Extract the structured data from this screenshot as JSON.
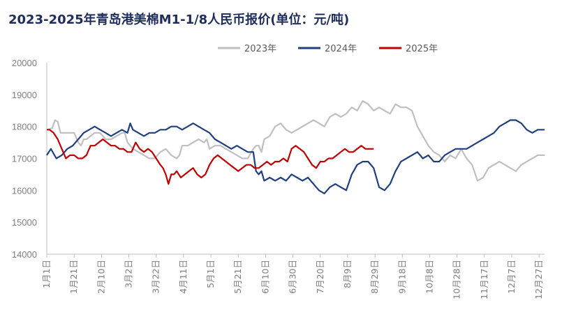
{
  "chart_data": {
    "type": "line",
    "title": "2023-2025年青岛港美棉M1-1/8人民币报价(单位：元/吨)",
    "ylim": [
      14000,
      20000
    ],
    "y_ticks": [
      20000,
      19000,
      18000,
      17000,
      16000,
      15000,
      14000
    ],
    "x_tick_labels": [
      "1月1日",
      "1月21日",
      "2月10日",
      "3月2日",
      "3月22日",
      "4月11日",
      "5月1日",
      "5月21日",
      "6月10日",
      "6月30日",
      "7月20日",
      "8月9日",
      "8月29日",
      "9月18日",
      "10月8日",
      "10月28日",
      "11月17日",
      "12月7日",
      "12月27日"
    ],
    "x_domain_days": [
      1,
      365
    ],
    "legend_position": "top-right",
    "series": [
      {
        "name": "2023年",
        "color": "#bfbfbf",
        "x": [
          1,
          5,
          7,
          9,
          11,
          13,
          15,
          18,
          21,
          24,
          26,
          28,
          30,
          33,
          36,
          40,
          44,
          48,
          52,
          56,
          58,
          60,
          64,
          68,
          72,
          76,
          80,
          84,
          88,
          92,
          96,
          98,
          100,
          104,
          108,
          112,
          116,
          118,
          120,
          124,
          128,
          132,
          136,
          140,
          144,
          148,
          152,
          154,
          156,
          158,
          160,
          164,
          168,
          172,
          176,
          180,
          184,
          188,
          192,
          196,
          200,
          204,
          208,
          212,
          216,
          220,
          224,
          228,
          232,
          236,
          240,
          244,
          248,
          252,
          256,
          260,
          264,
          268,
          272,
          276,
          280,
          284,
          288,
          292,
          296,
          300,
          304,
          308,
          312,
          316,
          320,
          324,
          328,
          332,
          336,
          340,
          344,
          348,
          352,
          356,
          360,
          365
        ],
        "values": [
          17900,
          17950,
          18200,
          18150,
          17800,
          17800,
          17800,
          17800,
          17800,
          17500,
          17400,
          17600,
          17600,
          17700,
          17800,
          17800,
          17600,
          17600,
          17700,
          17800,
          17800,
          17500,
          17300,
          17200,
          17100,
          17000,
          17000,
          17200,
          17300,
          17100,
          17000,
          17100,
          17400,
          17400,
          17500,
          17600,
          17500,
          17600,
          17300,
          17400,
          17400,
          17300,
          17200,
          17100,
          17000,
          17000,
          17300,
          17400,
          17400,
          17200,
          17600,
          17700,
          18000,
          18100,
          17900,
          17800,
          17900,
          18000,
          18100,
          18200,
          18100,
          18000,
          18300,
          18400,
          18300,
          18400,
          18600,
          18500,
          18800,
          18700,
          18500,
          18600,
          18500,
          18400,
          18700,
          18600,
          18600,
          18500,
          18000,
          17700,
          17400,
          17200,
          17100,
          16900,
          17100,
          17000,
          17300,
          17000,
          16800,
          16300,
          16400,
          16700,
          16800,
          16900,
          16800,
          16700,
          16600,
          16800,
          16900,
          17000,
          17100,
          17100
        ]
      },
      {
        "name": "2024年",
        "color": "#1f3f7f",
        "x": [
          1,
          4,
          8,
          12,
          16,
          20,
          24,
          28,
          32,
          36,
          40,
          44,
          48,
          52,
          56,
          60,
          62,
          64,
          68,
          72,
          76,
          80,
          84,
          88,
          92,
          96,
          100,
          104,
          108,
          112,
          116,
          120,
          124,
          128,
          132,
          136,
          140,
          144,
          148,
          152,
          154,
          156,
          158,
          160,
          164,
          168,
          172,
          176,
          180,
          184,
          188,
          192,
          196,
          200,
          204,
          208,
          212,
          216,
          220,
          224,
          228,
          232,
          236,
          240,
          244,
          248,
          252,
          256,
          260,
          264,
          268,
          272,
          276,
          280,
          284,
          288,
          292,
          296,
          300,
          304,
          308,
          312,
          316,
          320,
          324,
          328,
          332,
          336,
          340,
          344,
          348,
          352,
          356,
          360,
          365
        ],
        "values": [
          17100,
          17300,
          17000,
          17100,
          17300,
          17400,
          17600,
          17800,
          17900,
          18000,
          17900,
          17800,
          17700,
          17800,
          17900,
          17800,
          18100,
          17900,
          17800,
          17700,
          17800,
          17800,
          17900,
          17900,
          18000,
          18000,
          17900,
          18000,
          18100,
          18000,
          17900,
          17800,
          17600,
          17500,
          17400,
          17300,
          17400,
          17300,
          17200,
          17200,
          16600,
          16500,
          16600,
          16300,
          16400,
          16300,
          16400,
          16300,
          16500,
          16400,
          16300,
          16400,
          16200,
          16000,
          15900,
          16100,
          16200,
          16100,
          16000,
          16500,
          16800,
          16900,
          16900,
          16700,
          16100,
          16000,
          16200,
          16600,
          16900,
          17000,
          17100,
          17200,
          17000,
          17100,
          16900,
          16900,
          17100,
          17200,
          17300,
          17300,
          17300,
          17400,
          17500,
          17600,
          17700,
          17800,
          18000,
          18100,
          18200,
          18200,
          18100,
          17900,
          17800,
          17900,
          17900
        ]
      },
      {
        "name": "2025年",
        "color": "#c00000",
        "x": [
          1,
          3,
          6,
          9,
          12,
          15,
          18,
          21,
          24,
          27,
          30,
          33,
          36,
          39,
          42,
          45,
          48,
          51,
          54,
          57,
          60,
          63,
          66,
          69,
          72,
          75,
          78,
          81,
          84,
          86,
          88,
          90,
          92,
          94,
          96,
          99,
          102,
          105,
          108,
          111,
          114,
          117,
          120,
          123,
          126,
          129,
          132,
          135,
          138,
          141,
          144,
          147,
          150,
          153,
          156,
          159,
          162,
          165,
          168,
          171,
          174,
          177,
          180,
          183,
          186,
          189,
          192,
          195,
          198,
          201,
          204,
          207,
          210,
          213,
          216,
          219,
          222,
          225,
          228,
          231,
          234,
          237,
          240
        ],
        "values": [
          17900,
          17900,
          17800,
          17600,
          17300,
          17000,
          17100,
          17100,
          17000,
          17000,
          17100,
          17400,
          17400,
          17500,
          17600,
          17500,
          17400,
          17400,
          17300,
          17300,
          17200,
          17200,
          17500,
          17300,
          17200,
          17300,
          17200,
          17000,
          16800,
          16700,
          16500,
          16200,
          16500,
          16500,
          16600,
          16400,
          16500,
          16600,
          16700,
          16500,
          16400,
          16500,
          16800,
          17000,
          17100,
          17000,
          16900,
          16800,
          16700,
          16600,
          16700,
          16800,
          16800,
          16700,
          16700,
          16800,
          16900,
          16800,
          16900,
          16900,
          17000,
          16900,
          17300,
          17400,
          17300,
          17200,
          17000,
          16800,
          16700,
          16900,
          16900,
          17000,
          17000,
          17100,
          17200,
          17300,
          17200,
          17200,
          17300,
          17400,
          17300,
          17300,
          17300
        ]
      }
    ]
  }
}
